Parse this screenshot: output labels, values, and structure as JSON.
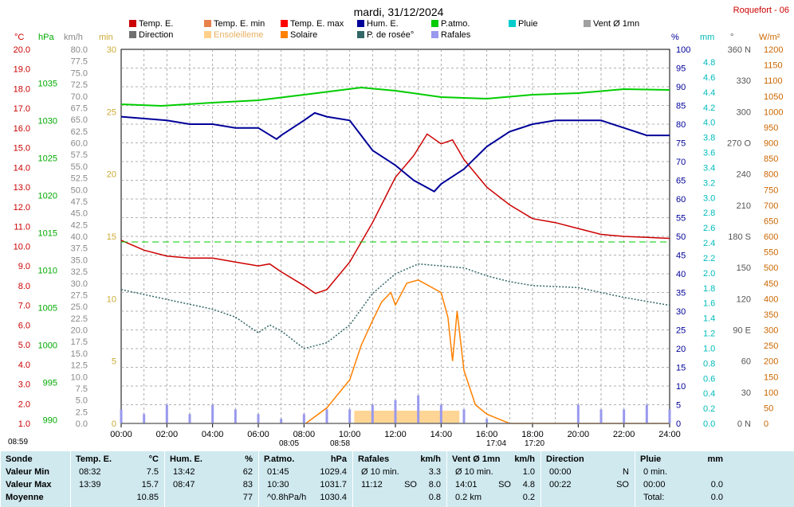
{
  "header": {
    "title": "mardi, 31/12/2024",
    "station": "Roquefort - 06"
  },
  "axes": {
    "temp_unit": "°C",
    "hpa_unit": "hPa",
    "kmh_unit": "km/h",
    "min_unit": "min",
    "pct_unit": "%",
    "mm_unit": "mm",
    "deg_unit": "°",
    "wm2_unit": "W/m²"
  },
  "legend": [
    {
      "label": "Temp. E.",
      "color": "#cc0000"
    },
    {
      "label": "Temp. E. min",
      "color": "#e8804a"
    },
    {
      "label": "Temp. E. max",
      "color": "#ff0000"
    },
    {
      "label": "Hum. E.",
      "color": "#000099"
    },
    {
      "label": "P.atmo.",
      "color": "#00cc00"
    },
    {
      "label": "Pluie",
      "color": "#00cccc"
    },
    {
      "label": "Vent Ø 1mn",
      "color": "#a0a0a0"
    },
    {
      "label": "Direction",
      "color": "#707070"
    },
    {
      "label": "Ensoleilleme",
      "color": "#ffd08a"
    },
    {
      "label": "Solaire",
      "color": "#ff8000"
    },
    {
      "label": "P. de rosée°",
      "color": "#336666"
    },
    {
      "label": "Rafales",
      "color": "#9999ee"
    }
  ],
  "chart_data": {
    "type": "line",
    "title": "mardi, 31/12/2024",
    "x_ticks": [
      "00:00",
      "02:00",
      "04:00",
      "06:00",
      "08:00",
      "10:00",
      "12:00",
      "14:00",
      "16:00",
      "18:00",
      "20:00",
      "22:00",
      "24:00"
    ],
    "xlim": [
      0,
      24
    ],
    "axes_ticks": {
      "temp_c": {
        "range": [
          1.0,
          20.0
        ],
        "step": 1.0
      },
      "pressure_hpa": {
        "labels": [
          "990",
          "995",
          "1000",
          "1005",
          "1010",
          "1015",
          "1020",
          "1025",
          "1030",
          "1035"
        ]
      },
      "wind_kmh": {
        "range": [
          0.0,
          80.0
        ],
        "step": 2.5
      },
      "sun_min": {
        "labels": [
          "0",
          "5",
          "10",
          "15",
          "20",
          "25",
          "30"
        ]
      },
      "humidity_pct": {
        "range": [
          0,
          100
        ],
        "step": 5
      },
      "rain_mm": {
        "range": [
          0.0,
          4.8
        ],
        "step": 0.2
      },
      "direction_deg": {
        "labels": [
          "0 N",
          "30",
          "60",
          "90 E",
          "120",
          "150",
          "180 S",
          "210",
          "240",
          "270 O",
          "300",
          "330",
          "360 N"
        ]
      },
      "solar_wm2": {
        "range": [
          0,
          1200
        ],
        "step": 50
      }
    },
    "series": [
      {
        "name": "Temp. E.",
        "unit": "°C",
        "color": "#cc0000",
        "points": [
          [
            0,
            10.3
          ],
          [
            1,
            9.8
          ],
          [
            2,
            9.5
          ],
          [
            3,
            9.4
          ],
          [
            4,
            9.4
          ],
          [
            5,
            9.2
          ],
          [
            6,
            9.0
          ],
          [
            6.5,
            9.1
          ],
          [
            7,
            8.7
          ],
          [
            8,
            8.0
          ],
          [
            8.5,
            7.6
          ],
          [
            9,
            7.8
          ],
          [
            10,
            9.2
          ],
          [
            11,
            11.2
          ],
          [
            12,
            13.5
          ],
          [
            12.8,
            14.6
          ],
          [
            13.39,
            15.7
          ],
          [
            14,
            15.2
          ],
          [
            14.5,
            15.4
          ],
          [
            15,
            14.4
          ],
          [
            16,
            13.0
          ],
          [
            17,
            12.1
          ],
          [
            18,
            11.4
          ],
          [
            19,
            11.2
          ],
          [
            20,
            10.9
          ],
          [
            21,
            10.6
          ],
          [
            22,
            10.5
          ],
          [
            23,
            10.45
          ],
          [
            24,
            10.4
          ]
        ]
      },
      {
        "name": "Hum. E.",
        "unit": "%",
        "color": "#000099",
        "points": [
          [
            0,
            82
          ],
          [
            2,
            81
          ],
          [
            3,
            80
          ],
          [
            4,
            80
          ],
          [
            5,
            79
          ],
          [
            6,
            79
          ],
          [
            6.8,
            76
          ],
          [
            7,
            77
          ],
          [
            8,
            81
          ],
          [
            8.47,
            83
          ],
          [
            9,
            82
          ],
          [
            10,
            81
          ],
          [
            11,
            73
          ],
          [
            12,
            69
          ],
          [
            12.8,
            65
          ],
          [
            13.7,
            62
          ],
          [
            14,
            64
          ],
          [
            15,
            68
          ],
          [
            16,
            74
          ],
          [
            17,
            78
          ],
          [
            18,
            80
          ],
          [
            19,
            81
          ],
          [
            20,
            81
          ],
          [
            21,
            81
          ],
          [
            22,
            79
          ],
          [
            23,
            77
          ],
          [
            24,
            77
          ]
        ]
      },
      {
        "name": "P.atmo.",
        "unit": "hPa",
        "color": "#00cc00",
        "points": [
          [
            0,
            1029.6
          ],
          [
            1.75,
            1029.4
          ],
          [
            4,
            1029.8
          ],
          [
            6,
            1030.1
          ],
          [
            8,
            1030.8
          ],
          [
            10.5,
            1031.7
          ],
          [
            12,
            1031.3
          ],
          [
            14,
            1030.5
          ],
          [
            16,
            1030.3
          ],
          [
            18,
            1030.8
          ],
          [
            20,
            1031.0
          ],
          [
            22,
            1031.5
          ],
          [
            24,
            1031.4
          ]
        ]
      },
      {
        "name": "P. de rosée°",
        "unit": "°C",
        "color": "#336666",
        "points": [
          [
            0,
            7.8
          ],
          [
            2,
            7.3
          ],
          [
            4,
            6.8
          ],
          [
            5,
            6.4
          ],
          [
            6,
            5.6
          ],
          [
            6.5,
            6.0
          ],
          [
            7,
            5.7
          ],
          [
            8,
            4.8
          ],
          [
            9,
            5.1
          ],
          [
            10,
            6.0
          ],
          [
            11,
            7.6
          ],
          [
            12,
            8.6
          ],
          [
            13,
            9.1
          ],
          [
            14,
            9.0
          ],
          [
            15,
            8.9
          ],
          [
            16,
            8.5
          ],
          [
            17,
            8.2
          ],
          [
            18,
            8.0
          ],
          [
            20,
            7.9
          ],
          [
            22,
            7.4
          ],
          [
            24,
            7.0
          ]
        ]
      },
      {
        "name": "Solaire",
        "unit": "W/m²",
        "color": "#ff8000",
        "points": [
          [
            8.08,
            0
          ],
          [
            9,
            50
          ],
          [
            10,
            140
          ],
          [
            10.5,
            250
          ],
          [
            11,
            330
          ],
          [
            11.4,
            390
          ],
          [
            11.8,
            420
          ],
          [
            12,
            380
          ],
          [
            12.5,
            450
          ],
          [
            13,
            460
          ],
          [
            14,
            420
          ],
          [
            14.3,
            340
          ],
          [
            14.5,
            200
          ],
          [
            14.7,
            360
          ],
          [
            15,
            170
          ],
          [
            15.5,
            60
          ],
          [
            16,
            30
          ],
          [
            17,
            0
          ],
          [
            24,
            0
          ]
        ]
      },
      {
        "name": "Rafales",
        "unit": "km/h",
        "color": "#9999ee",
        "points": [
          [
            0,
            3
          ],
          [
            1,
            2
          ],
          [
            2,
            4
          ],
          [
            3,
            2
          ],
          [
            4,
            4
          ],
          [
            5,
            3
          ],
          [
            6,
            2
          ],
          [
            7,
            1
          ],
          [
            8,
            2
          ],
          [
            9,
            3
          ],
          [
            10,
            3
          ],
          [
            11,
            4
          ],
          [
            12,
            5
          ],
          [
            13,
            6
          ],
          [
            14,
            4
          ],
          [
            15,
            3
          ],
          [
            16,
            1
          ],
          [
            17,
            0
          ],
          [
            18,
            0
          ],
          [
            19,
            0
          ],
          [
            20,
            4
          ],
          [
            21,
            3
          ],
          [
            22,
            3
          ],
          [
            23,
            4
          ],
          [
            24,
            3
          ]
        ]
      },
      {
        "name": "Direction",
        "unit": "°",
        "color": "#707070",
        "points": [
          [
            0,
            0
          ],
          [
            24,
            0
          ]
        ]
      }
    ]
  },
  "sun": {
    "time_left": "08:59",
    "sunrise": "08:05",
    "sunrise2": "08:58",
    "sunset": "17:04",
    "sunset2": "17:20"
  },
  "table": [
    {
      "title": "Sonde",
      "unit": "",
      "rows": [
        [
          "Valeur Min",
          "",
          ""
        ],
        [
          "Valeur Max",
          "",
          ""
        ],
        [
          "Moyenne",
          "",
          ""
        ]
      ]
    },
    {
      "title": "Temp. E.",
      "unit": "°C",
      "rows": [
        [
          "08:32",
          "",
          "7.5"
        ],
        [
          "13:39",
          "",
          "15.7"
        ],
        [
          "",
          "",
          "10.85"
        ]
      ]
    },
    {
      "title": "Hum. E.",
      "unit": "%",
      "rows": [
        [
          "13:42",
          "",
          "62"
        ],
        [
          "08:47",
          "",
          "83"
        ],
        [
          "",
          "",
          "77"
        ]
      ]
    },
    {
      "title": "P.atmo.",
      "unit": "hPa",
      "rows": [
        [
          "01:45",
          "",
          "1029.4"
        ],
        [
          "10:30",
          "",
          "1031.7"
        ],
        [
          "^0.8hPa/h",
          "",
          "1030.4"
        ]
      ]
    },
    {
      "title": "Rafales",
      "unit": "km/h",
      "rows": [
        [
          "Ø 10 min.",
          "",
          "3.3"
        ],
        [
          "11:12",
          "SO",
          "8.0"
        ],
        [
          "",
          "",
          "0.8"
        ]
      ]
    },
    {
      "title": "Vent Ø 1mn",
      "unit": "km/h",
      "rows": [
        [
          "Ø 10 min.",
          "",
          "1.0"
        ],
        [
          "14:01",
          "SO",
          "4.8"
        ],
        [
          "0.2 km",
          "",
          "0.2"
        ]
      ]
    },
    {
      "title": "Direction",
      "unit": "",
      "rows": [
        [
          "00:00",
          "",
          "N"
        ],
        [
          "00:22",
          "",
          "SO"
        ],
        [
          "",
          "",
          ""
        ]
      ]
    },
    {
      "title": "Pluie",
      "unit": "mm",
      "rows": [
        [
          "0 min.",
          "",
          ""
        ],
        [
          "00:00",
          "",
          "0.0"
        ],
        [
          "Total:",
          "",
          "0.0"
        ]
      ]
    }
  ]
}
